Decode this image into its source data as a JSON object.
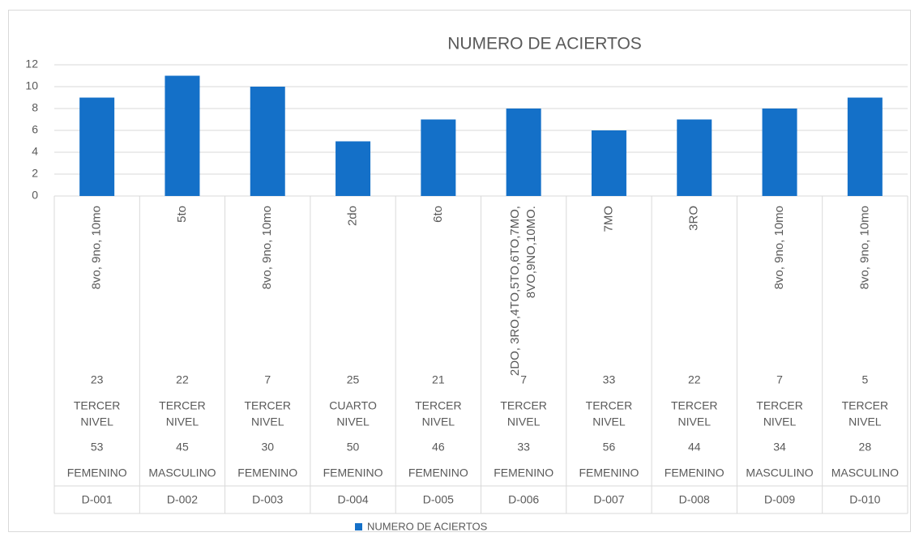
{
  "chart_data": {
    "type": "bar",
    "title": "NUMERO DE ACIERTOS",
    "categories": [
      {
        "grade": [
          "8vo, 9no, 10mo"
        ],
        "n1": "23",
        "level": [
          "TERCER",
          "NIVEL"
        ],
        "n2": "53",
        "gender": "FEMENINO",
        "id": "D-001"
      },
      {
        "grade": [
          "5to"
        ],
        "n1": "22",
        "level": [
          "TERCER",
          "NIVEL"
        ],
        "n2": "45",
        "gender": "MASCULINO",
        "id": "D-002"
      },
      {
        "grade": [
          "8vo, 9no, 10mo"
        ],
        "n1": "7",
        "level": [
          "TERCER",
          "NIVEL"
        ],
        "n2": "30",
        "gender": "FEMENINO",
        "id": "D-003"
      },
      {
        "grade": [
          "2do"
        ],
        "n1": "25",
        "level": [
          "CUARTO",
          "NIVEL"
        ],
        "n2": "50",
        "gender": "FEMENINO",
        "id": "D-004"
      },
      {
        "grade": [
          "6to"
        ],
        "n1": "21",
        "level": [
          "TERCER",
          "NIVEL"
        ],
        "n2": "46",
        "gender": "FEMENINO",
        "id": "D-005"
      },
      {
        "grade": [
          "2DO, 3RO,4TO,5TO,6TO,7MO,",
          "8VO,9NO,10MO."
        ],
        "n1": "7",
        "level": [
          "TERCER",
          "NIVEL"
        ],
        "n2": "33",
        "gender": "FEMENINO",
        "id": "D-006"
      },
      {
        "grade": [
          "7MO"
        ],
        "n1": "33",
        "level": [
          "TERCER",
          "NIVEL"
        ],
        "n2": "56",
        "gender": "FEMENINO",
        "id": "D-007"
      },
      {
        "grade": [
          "3RO"
        ],
        "n1": "22",
        "level": [
          "TERCER",
          "NIVEL"
        ],
        "n2": "44",
        "gender": "FEMENINO",
        "id": "D-008"
      },
      {
        "grade": [
          "8vo, 9no, 10mo"
        ],
        "n1": "7",
        "level": [
          "TERCER",
          "NIVEL"
        ],
        "n2": "34",
        "gender": "MASCULINO",
        "id": "D-009"
      },
      {
        "grade": [
          "8vo, 9no, 10mo"
        ],
        "n1": "5",
        "level": [
          "TERCER",
          "NIVEL"
        ],
        "n2": "28",
        "gender": "MASCULINO",
        "id": "D-010"
      }
    ],
    "series": [
      {
        "name": "NUMERO DE ACIERTOS",
        "color": "#1470c8",
        "values": [
          9,
          11,
          10,
          5,
          7,
          8,
          6,
          7,
          8,
          9
        ]
      }
    ],
    "ylim": [
      0,
      12
    ],
    "yticks": [
      0,
      2,
      4,
      6,
      8,
      10,
      12
    ],
    "grid": true,
    "legend": "bottom"
  }
}
